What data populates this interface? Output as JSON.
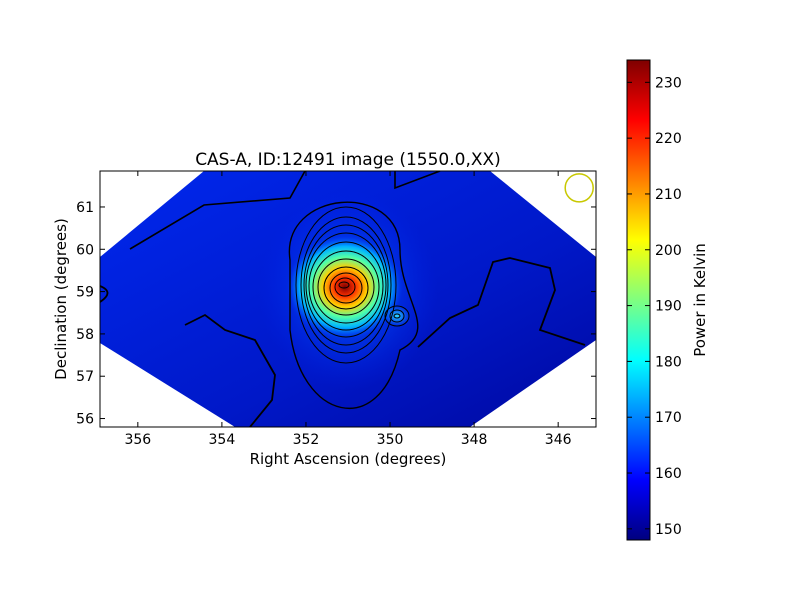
{
  "chart_data": {
    "type": "heatmap",
    "title": "CAS-A, ID:12491 image (1550.0,XX)",
    "xlabel": "Right Ascension (degrees)",
    "ylabel": "Declination (degrees)",
    "xlim": [
      356.9,
      345.1
    ],
    "ylim": [
      55.8,
      61.85
    ],
    "x_ticks": [
      "356",
      "354",
      "352",
      "350",
      "348",
      "346"
    ],
    "x_tick_values": [
      356,
      354,
      352,
      350,
      348,
      346
    ],
    "y_ticks": [
      "56",
      "57",
      "58",
      "59",
      "60",
      "61"
    ],
    "y_tick_values": [
      56,
      57,
      58,
      59,
      60,
      61
    ],
    "colorbar": {
      "label": "Power in Kelvin",
      "range": [
        148,
        234
      ],
      "ticks": [
        "150",
        "160",
        "170",
        "180",
        "190",
        "200",
        "210",
        "220",
        "230"
      ],
      "tick_values": [
        150,
        160,
        170,
        180,
        190,
        200,
        210,
        220,
        230
      ],
      "colormap": "jet"
    },
    "background_level": 160,
    "sources": [
      {
        "name": "main-peak",
        "ra": 350.95,
        "dec": 59.15,
        "peak": 234
      },
      {
        "name": "secondary-peak",
        "ra": 349.7,
        "dec": 58.4,
        "peak": 172
      }
    ],
    "beam_marker": {
      "ra": 345.5,
      "dec": 61.45,
      "color": "#c8c800"
    },
    "grid": false,
    "contours": true
  }
}
